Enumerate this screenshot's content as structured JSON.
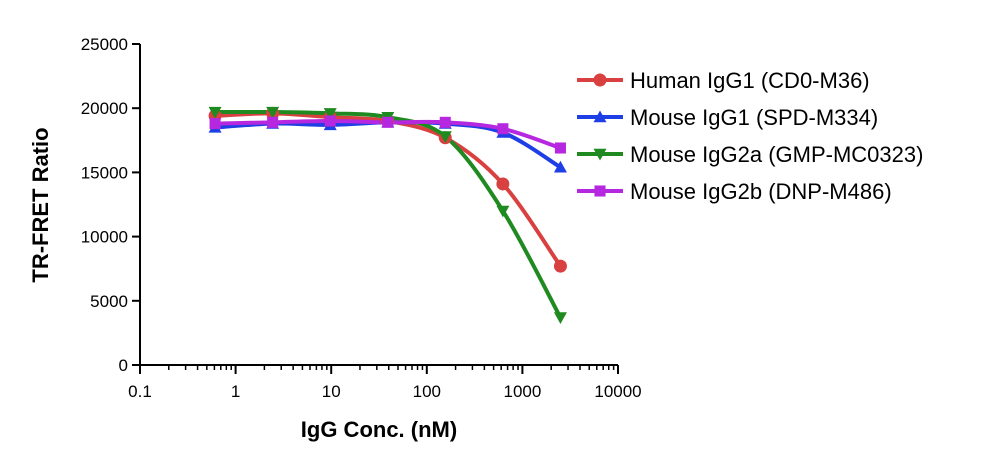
{
  "chart_data": {
    "type": "line",
    "xlabel": "IgG Conc. (nM)",
    "ylabel": "TR-FRET Ratio",
    "xscale": "log",
    "xlim": [
      0.1,
      10000
    ],
    "ylim": [
      0,
      25000
    ],
    "xticks": [
      0.1,
      1,
      10,
      100,
      1000,
      10000
    ],
    "xtick_labels": [
      "0.1",
      "1",
      "10",
      "100",
      "1000",
      "10000"
    ],
    "yticks": [
      0,
      5000,
      10000,
      15000,
      20000,
      25000
    ],
    "ytick_labels": [
      "0",
      "5000",
      "10000",
      "15000",
      "20000",
      "25000"
    ],
    "grid": false,
    "legend_position": "right",
    "x": [
      0.61,
      2.44,
      9.77,
      39.1,
      156,
      625,
      2500
    ],
    "series": [
      {
        "name": "Human IgG1 (CD0-M36)",
        "color": "#d94040",
        "marker": "circle",
        "values": [
          19400,
          19600,
          19300,
          19000,
          17700,
          14100,
          7700
        ]
      },
      {
        "name": "Mouse IgG1 (SPD-M334)",
        "color": "#1f3fe6",
        "marker": "triangle-up",
        "values": [
          18500,
          18800,
          18700,
          18900,
          18800,
          18100,
          15400
        ]
      },
      {
        "name": "Mouse IgG2a (GMP-MC0323)",
        "color": "#1f8a1f",
        "marker": "triangle-down",
        "values": [
          19700,
          19700,
          19600,
          19300,
          17800,
          12000,
          3700
        ]
      },
      {
        "name": "Mouse IgG2b (DNP-M486)",
        "color": "#b528e0",
        "marker": "square",
        "values": [
          18800,
          18900,
          19000,
          18900,
          18900,
          18400,
          16900
        ]
      }
    ]
  }
}
